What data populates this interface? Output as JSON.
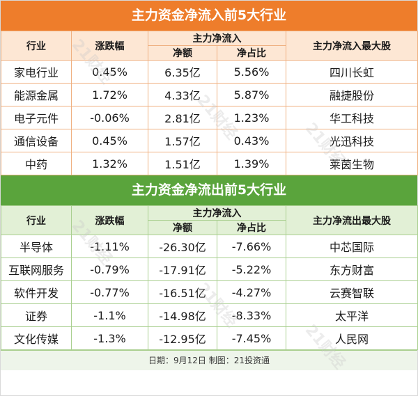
{
  "inflow": {
    "title": "主力资金净流入前5大行业",
    "headers": {
      "industry": "行业",
      "change": "涨跌幅",
      "net_inflow": "主力净流入",
      "amount": "净额",
      "ratio": "净占比",
      "top_stock": "主力净流入最大股"
    },
    "rows": [
      {
        "industry": "家电行业",
        "change": "0.45%",
        "amount": "6.35亿",
        "ratio": "5.56%",
        "stock": "四川长虹"
      },
      {
        "industry": "能源金属",
        "change": "1.72%",
        "amount": "4.33亿",
        "ratio": "5.87%",
        "stock": "融捷股份"
      },
      {
        "industry": "电子元件",
        "change": "-0.06%",
        "amount": "2.81亿",
        "ratio": "1.23%",
        "stock": "华工科技"
      },
      {
        "industry": "通信设备",
        "change": "0.45%",
        "amount": "1.57亿",
        "ratio": "0.43%",
        "stock": "光迅科技"
      },
      {
        "industry": "中药",
        "change": "1.32%",
        "amount": "1.51亿",
        "ratio": "1.39%",
        "stock": "莱茵生物"
      }
    ]
  },
  "outflow": {
    "title": "主力资金净流出前5大行业",
    "headers": {
      "industry": "行业",
      "change": "涨跌幅",
      "net_inflow": "主力净流入",
      "amount": "净额",
      "ratio": "净占比",
      "top_stock": "主力净流出最大股"
    },
    "rows": [
      {
        "industry": "半导体",
        "change": "-1.11%",
        "amount": "-26.30亿",
        "ratio": "-7.66%",
        "stock": "中芯国际"
      },
      {
        "industry": "互联网服务",
        "change": "-0.79%",
        "amount": "-17.91亿",
        "ratio": "-5.22%",
        "stock": "东方财富"
      },
      {
        "industry": "软件开发",
        "change": "-0.77%",
        "amount": "-16.51亿",
        "ratio": "-4.27%",
        "stock": "云赛智联"
      },
      {
        "industry": "证券",
        "change": "-1.1%",
        "amount": "-14.98亿",
        "ratio": "-8.33%",
        "stock": "太平洋"
      },
      {
        "industry": "文化传媒",
        "change": "-1.3%",
        "amount": "-12.95亿",
        "ratio": "-7.45%",
        "stock": "人民网"
      }
    ]
  },
  "footer": "日期：9月12日 制图：21投资通",
  "watermark": "21财经",
  "colors": {
    "inflow_accent": "#ee7d2b",
    "outflow_accent": "#5aa43c"
  }
}
